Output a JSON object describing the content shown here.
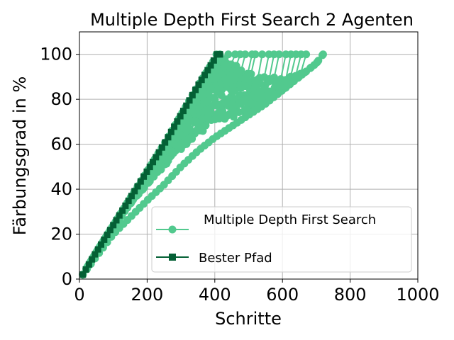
{
  "chart_data": {
    "type": "line",
    "title": "Multiple Depth First Search 2 Agenten",
    "xlabel": "Schritte",
    "ylabel": "Färbungsgrad in %",
    "xlim": [
      0,
      1000
    ],
    "ylim": [
      0,
      110
    ],
    "xticks": [
      "0",
      "200",
      "400",
      "600",
      "800",
      "1000"
    ],
    "yticks": [
      "0",
      "20",
      "40",
      "60",
      "80",
      "100"
    ],
    "grid": true,
    "legend_position": "lower-right",
    "series": [
      {
        "name": "Multiple Depth First Search",
        "color": "#52c98e",
        "marker": "circle",
        "note_runs": "many overlapping runs from (10,2) to 100%",
        "run_endpoints": [
          415,
          440,
          460,
          475,
          490,
          510,
          520,
          540,
          560,
          575,
          590,
          610,
          625,
          640,
          655,
          670,
          720
        ],
        "lower_bound_curve": {
          "x": [
            10,
            100,
            200,
            250,
            300,
            350,
            400,
            450,
            500,
            550,
            600,
            650,
            700,
            720
          ],
          "y": [
            2,
            20,
            35,
            42,
            50,
            57,
            63,
            68,
            73,
            78,
            84,
            90,
            96,
            100
          ]
        }
      },
      {
        "name": "Bester Pfad",
        "color": "#046035",
        "marker": "square",
        "x": [
          10,
          50,
          100,
          150,
          200,
          250,
          300,
          350,
          400,
          405,
          415
        ],
        "y": [
          2,
          12,
          24,
          36,
          48,
          60,
          73,
          86,
          98,
          100,
          100
        ]
      }
    ]
  }
}
